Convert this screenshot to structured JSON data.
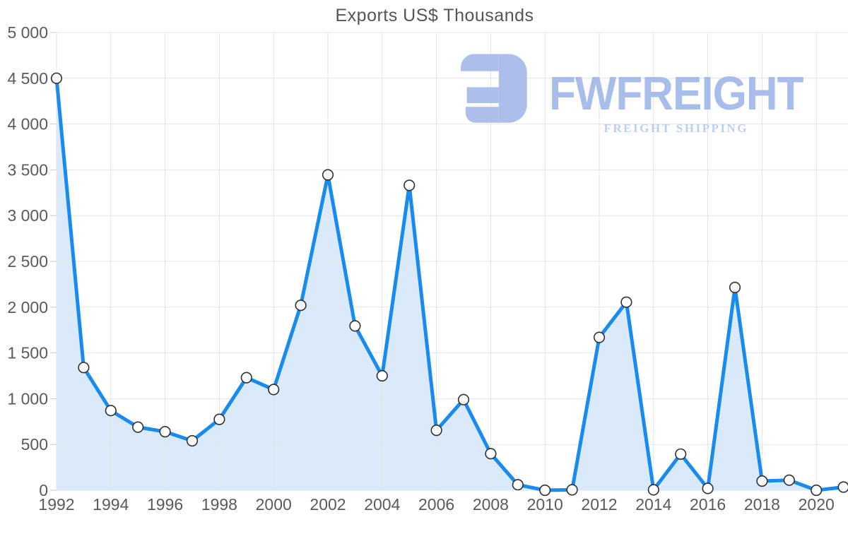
{
  "chart_data": {
    "type": "area",
    "title": "Exports US$ Thousands",
    "x": [
      1992,
      1993,
      1994,
      1995,
      1996,
      1997,
      1998,
      1999,
      2000,
      2001,
      2002,
      2003,
      2004,
      2005,
      2006,
      2007,
      2008,
      2009,
      2010,
      2011,
      2012,
      2013,
      2014,
      2015,
      2016,
      2017,
      2018,
      2019,
      2020,
      2021
    ],
    "values": [
      4500,
      1340,
      870,
      690,
      640,
      540,
      775,
      1230,
      1100,
      2020,
      3445,
      1795,
      1250,
      3330,
      655,
      990,
      400,
      60,
      0,
      5,
      1670,
      2055,
      5,
      395,
      20,
      2215,
      100,
      110,
      0,
      35
    ],
    "series_name": "Exports US$ Thousands",
    "xlabel": "",
    "ylabel": "",
    "ylim": [
      0,
      5000
    ],
    "ytick_step": 500,
    "ytick_labels": [
      "0",
      "500",
      "1 000",
      "1 500",
      "2 000",
      "2 500",
      "3 000",
      "3 500",
      "4 000",
      "4 500",
      "5 000"
    ],
    "xtick_labels": [
      "1992",
      "1994",
      "1996",
      "1998",
      "2000",
      "2002",
      "2004",
      "2006",
      "2008",
      "2010",
      "2012",
      "2014",
      "2016",
      "2018",
      "2020"
    ],
    "grid": true,
    "legend_position": "none",
    "line_color": "#178bef",
    "fill_color": "#daeafb",
    "marker_fill": "#ffffff",
    "marker_stroke": "#303030",
    "grid_color": "#e4e4e4",
    "tick_color": "#c8c8c8",
    "axis_label_color": "#5a5a5a",
    "title_color": "#555555"
  },
  "watermark": {
    "brand": "FWFREIGHT",
    "tagline": "FREIGHT SHIPPING",
    "brand_color": "#a5baea",
    "tagline_color": "#b9ccf1",
    "mark_color": "#a8bcea"
  }
}
